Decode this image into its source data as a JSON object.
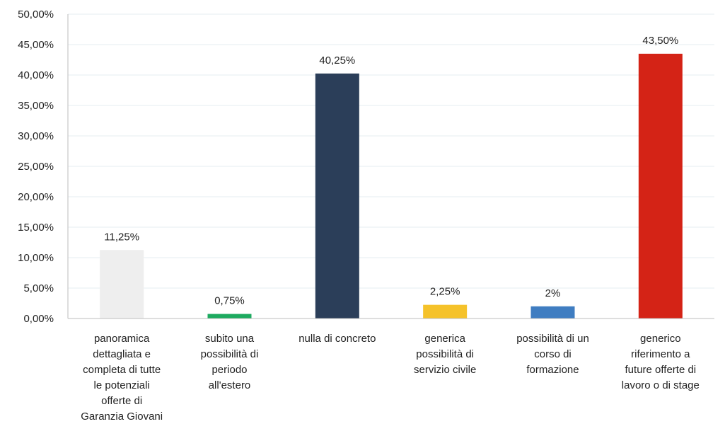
{
  "chart_data": {
    "type": "bar",
    "title": "",
    "xlabel": "",
    "ylabel": "",
    "ylim": [
      0,
      50
    ],
    "yticks": [
      "0,00%",
      "5,00%",
      "10,00%",
      "15,00%",
      "20,00%",
      "25,00%",
      "30,00%",
      "35,00%",
      "40,00%",
      "45,00%",
      "50,00%"
    ],
    "grid": true,
    "legend": "none",
    "categories": [
      [
        "panoramica",
        "dettagliata e",
        "completa di tutte",
        "le potenziali",
        "offerte di",
        "Garanzia Giovani"
      ],
      [
        "subito una",
        "possibilità di",
        "periodo",
        "all'estero"
      ],
      [
        "nulla di concreto"
      ],
      [
        "generica",
        "possibilità di",
        "servizio civile"
      ],
      [
        "possibilità di un",
        "corso di",
        "formazione"
      ],
      [
        "generico",
        "riferimento a",
        "future offerte di",
        "lavoro o di stage"
      ]
    ],
    "values": [
      11.25,
      0.75,
      40.25,
      2.25,
      2,
      43.5
    ],
    "value_labels": [
      "11,25%",
      "0,75%",
      "40,25%",
      "2,25%",
      "2%",
      "43,50%"
    ],
    "colors": [
      "#eeeeee",
      "#1daa5f",
      "#2b3e59",
      "#f5c22a",
      "#3f7dc1",
      "#d42316"
    ]
  }
}
